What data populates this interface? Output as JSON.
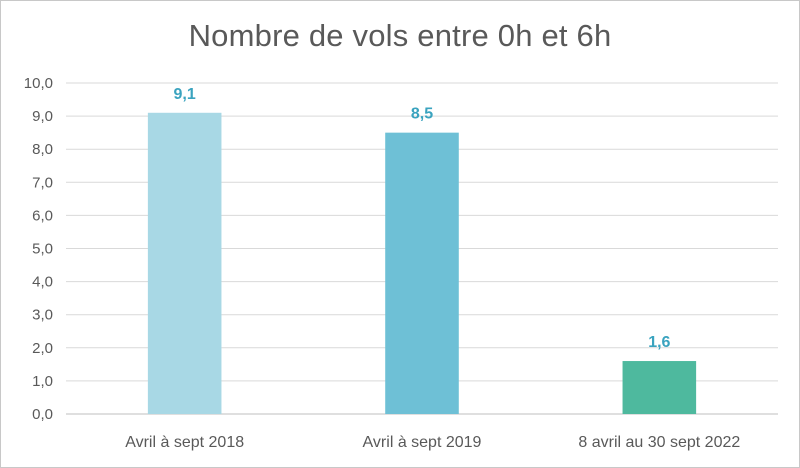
{
  "chart_data": {
    "type": "bar",
    "title": "Nombre de vols entre 0h et 6h",
    "categories": [
      "Avril à sept 2018",
      "Avril à sept 2019",
      "8 avril au 30 sept 2022"
    ],
    "values": [
      9.1,
      8.5,
      1.6
    ],
    "data_labels": [
      "9,1",
      "8,5",
      "1,6"
    ],
    "bar_colors": [
      "#a8d8e5",
      "#6ec0d6",
      "#4eb99e"
    ],
    "data_label_color": "#3aa3bf",
    "ylim": [
      0,
      10
    ],
    "y_ticks": [
      "0,0",
      "1,0",
      "2,0",
      "3,0",
      "4,0",
      "5,0",
      "6,0",
      "7,0",
      "8,0",
      "9,0",
      "10,0"
    ],
    "grid": true,
    "legend": "none"
  }
}
